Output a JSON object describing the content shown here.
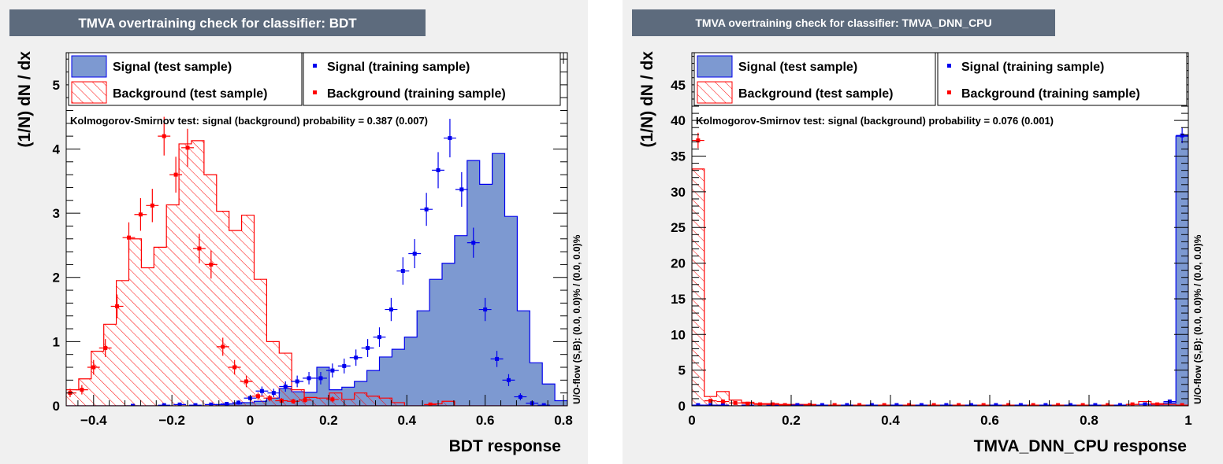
{
  "colors": {
    "signal_fill": "#7d99d1",
    "signal_line": "#0000ee",
    "background_hatch": "#ff0000",
    "title_box": "#5d6b7d",
    "canvas_bg": "#f0f0f0"
  },
  "chart_data": [
    {
      "type": "histogram",
      "title": "TMVA overtraining check for classifier: BDT",
      "xlabel": "BDT response",
      "ylabel": "(1/N) dN / dx",
      "xlim": [
        -0.47,
        0.81
      ],
      "ylim": [
        0,
        5.5
      ],
      "x_ticks": [
        -0.4,
        -0.2,
        0,
        0.2,
        0.4,
        0.6,
        0.8
      ],
      "x_tick_labels": [
        "−0.4",
        "−0.2",
        "0",
        "0.2",
        "0.4",
        "0.6",
        "0.8"
      ],
      "y_ticks": [
        0,
        1,
        2,
        3,
        4,
        5
      ],
      "y_tick_labels": [
        "0",
        "1",
        "2",
        "3",
        "4",
        "5"
      ],
      "ks_text": "Kolmogorov-Smirnov test: signal (background) probability = 0.387 (0.007)",
      "overflow_text": "U/O-flow (S,B): (0.0, 0.0)% / (0.0, 0.0)%",
      "legend": {
        "signal_test": "Signal (test sample)",
        "signal_train": "Signal (training sample)",
        "background_test": "Background (test sample)",
        "background_train": "Background (training sample)"
      },
      "bin_width": 0.032,
      "bin_edges_start": -0.47,
      "signal_test": [
        0,
        0,
        0,
        0,
        0,
        0,
        0,
        0,
        0,
        0,
        0,
        0,
        0.02,
        0.03,
        0.05,
        0.07,
        0.12,
        0.27,
        0.22,
        0.21,
        0.6,
        0.25,
        0.29,
        0.38,
        0.55,
        0.76,
        0.88,
        1.07,
        1.48,
        1.97,
        2.22,
        2.65,
        3.82,
        3.45,
        3.93,
        2.95,
        1.48,
        0.67,
        0.34,
        0.08,
        0.03,
        0
      ],
      "background_test": [
        0.25,
        0.42,
        0.85,
        1.27,
        1.95,
        2.6,
        2.15,
        2.47,
        3.13,
        4.08,
        4.13,
        3.6,
        3.03,
        2.73,
        2.97,
        1.97,
        1.0,
        0.82,
        0.25,
        0.13,
        0.12,
        0.2,
        0.1,
        0.2,
        0.15,
        0.12,
        0.05,
        0,
        0,
        0.03,
        0.07,
        0,
        0,
        0,
        0,
        0,
        0,
        0,
        0,
        0,
        0,
        0
      ],
      "signal_train_points": [
        [
          -0.3,
          0
        ],
        [
          -0.22,
          0.01
        ],
        [
          -0.18,
          0.02
        ],
        [
          -0.14,
          0.01
        ],
        [
          -0.1,
          0.02
        ],
        [
          -0.06,
          0.03
        ],
        [
          -0.03,
          0.05
        ],
        [
          0.0,
          0.12
        ],
        [
          0.03,
          0.23
        ],
        [
          0.06,
          0.2
        ],
        [
          0.09,
          0.3
        ],
        [
          0.12,
          0.38
        ],
        [
          0.15,
          0.43
        ],
        [
          0.18,
          0.43
        ],
        [
          0.21,
          0.55
        ],
        [
          0.24,
          0.62
        ],
        [
          0.27,
          0.75
        ],
        [
          0.3,
          0.9
        ],
        [
          0.33,
          1.07
        ],
        [
          0.36,
          1.5
        ],
        [
          0.39,
          2.1
        ],
        [
          0.42,
          2.37
        ],
        [
          0.45,
          3.06
        ],
        [
          0.48,
          3.67
        ],
        [
          0.51,
          4.17
        ],
        [
          0.54,
          3.37
        ],
        [
          0.57,
          2.54
        ],
        [
          0.6,
          1.5
        ],
        [
          0.63,
          0.73
        ],
        [
          0.66,
          0.4
        ],
        [
          0.69,
          0.14
        ],
        [
          0.72,
          0.04
        ],
        [
          0.75,
          0.01
        ]
      ],
      "background_train_points": [
        [
          -0.46,
          0.2
        ],
        [
          -0.43,
          0.25
        ],
        [
          -0.4,
          0.6
        ],
        [
          -0.37,
          0.9
        ],
        [
          -0.34,
          1.55
        ],
        [
          -0.31,
          2.62
        ],
        [
          -0.28,
          2.98
        ],
        [
          -0.25,
          3.12
        ],
        [
          -0.22,
          4.2
        ],
        [
          -0.19,
          3.6
        ],
        [
          -0.16,
          4.02
        ],
        [
          -0.13,
          2.45
        ],
        [
          -0.1,
          2.2
        ],
        [
          -0.07,
          0.92
        ],
        [
          -0.04,
          0.6
        ],
        [
          -0.01,
          0.38
        ],
        [
          0.02,
          0.15
        ],
        [
          0.05,
          0.12
        ],
        [
          0.08,
          0.08
        ],
        [
          0.11,
          0.07
        ],
        [
          0.14,
          0.09
        ],
        [
          0.21,
          0.1
        ],
        [
          0.46,
          0.02
        ]
      ]
    },
    {
      "type": "histogram",
      "title": "TMVA overtraining check for classifier: TMVA_DNN_CPU",
      "xlabel": "TMVA_DNN_CPU response",
      "ylabel": "(1/N) dN / dx",
      "xlim": [
        0,
        1
      ],
      "ylim": [
        0,
        49.5
      ],
      "x_ticks": [
        0,
        0.2,
        0.4,
        0.6,
        0.8,
        1
      ],
      "x_tick_labels": [
        "0",
        "0.2",
        "0.4",
        "0.6",
        "0.8",
        "1"
      ],
      "y_ticks": [
        0,
        5,
        10,
        15,
        20,
        25,
        30,
        35,
        40,
        45
      ],
      "y_tick_labels": [
        "0",
        "5",
        "10",
        "15",
        "20",
        "25",
        "30",
        "35",
        "40",
        "45"
      ],
      "ks_text": "Kolmogorov-Smirnov test: signal (background) probability = 0.076 (0.001)",
      "overflow_text": "U/O-flow (S,B): (0.0, 0.0)% / (0.0, 0.0)%",
      "legend": {
        "signal_test": "Signal (test sample)",
        "signal_train": "Signal (training sample)",
        "background_test": "Background (test sample)",
        "background_train": "Background (training sample)"
      },
      "bin_width": 0.025,
      "bin_edges_start": 0,
      "signal_test": [
        0,
        0,
        0,
        0,
        0,
        0,
        0,
        0,
        0,
        0,
        0,
        0,
        0,
        0,
        0,
        0,
        0,
        0,
        0,
        0,
        0,
        0,
        0,
        0,
        0,
        0,
        0,
        0,
        0,
        0,
        0,
        0,
        0,
        0,
        0,
        0,
        0,
        0.2,
        0.4,
        37.8
      ],
      "background_test": [
        33.2,
        1.3,
        2.0,
        0.8,
        0.5,
        0.3,
        0.3,
        0.2,
        0.2,
        0.2,
        0.1,
        0.1,
        0.1,
        0.1,
        0.1,
        0.1,
        0.1,
        0.1,
        0.1,
        0.1,
        0.1,
        0.1,
        0.1,
        0.1,
        0.1,
        0.1,
        0.1,
        0.1,
        0.1,
        0.1,
        0.1,
        0.1,
        0.1,
        0.1,
        0.1,
        0.2,
        0.6,
        0.3,
        0.2,
        0.1
      ],
      "signal_train_points": [
        [
          0.0125,
          0.1
        ],
        [
          0.0375,
          0.1
        ],
        [
          0.0625,
          0.1
        ],
        [
          0.1125,
          0.1
        ],
        [
          0.1625,
          0.1
        ],
        [
          0.2125,
          0.1
        ],
        [
          0.2625,
          0.1
        ],
        [
          0.3125,
          0.1
        ],
        [
          0.3625,
          0.1
        ],
        [
          0.4125,
          0.1
        ],
        [
          0.4625,
          0.1
        ],
        [
          0.5125,
          0.1
        ],
        [
          0.5625,
          0.1
        ],
        [
          0.6125,
          0.1
        ],
        [
          0.6625,
          0.1
        ],
        [
          0.7125,
          0.1
        ],
        [
          0.7625,
          0.1
        ],
        [
          0.8125,
          0.1
        ],
        [
          0.8625,
          0.1
        ],
        [
          0.9125,
          0.2
        ],
        [
          0.9625,
          0.6
        ],
        [
          0.9875,
          37.9
        ]
      ],
      "background_train_points": [
        [
          0.0125,
          37.2
        ],
        [
          0.0375,
          0.7
        ],
        [
          0.0625,
          0.6
        ],
        [
          0.0875,
          0.4
        ],
        [
          0.1125,
          0.3
        ],
        [
          0.1375,
          0.2
        ],
        [
          0.1625,
          0.2
        ],
        [
          0.1875,
          0.1
        ],
        [
          0.2375,
          0.1
        ],
        [
          0.2875,
          0.1
        ],
        [
          0.3375,
          0.1
        ],
        [
          0.3875,
          0.1
        ],
        [
          0.4375,
          0.1
        ],
        [
          0.4875,
          0.1
        ],
        [
          0.5375,
          0.1
        ],
        [
          0.5875,
          0.1
        ],
        [
          0.6375,
          0.1
        ],
        [
          0.6875,
          0.1
        ],
        [
          0.7375,
          0.1
        ],
        [
          0.7875,
          0.1
        ],
        [
          0.8375,
          0.1
        ],
        [
          0.8875,
          0.2
        ],
        [
          0.9375,
          0.2
        ],
        [
          0.9875,
          0.1
        ]
      ]
    }
  ]
}
